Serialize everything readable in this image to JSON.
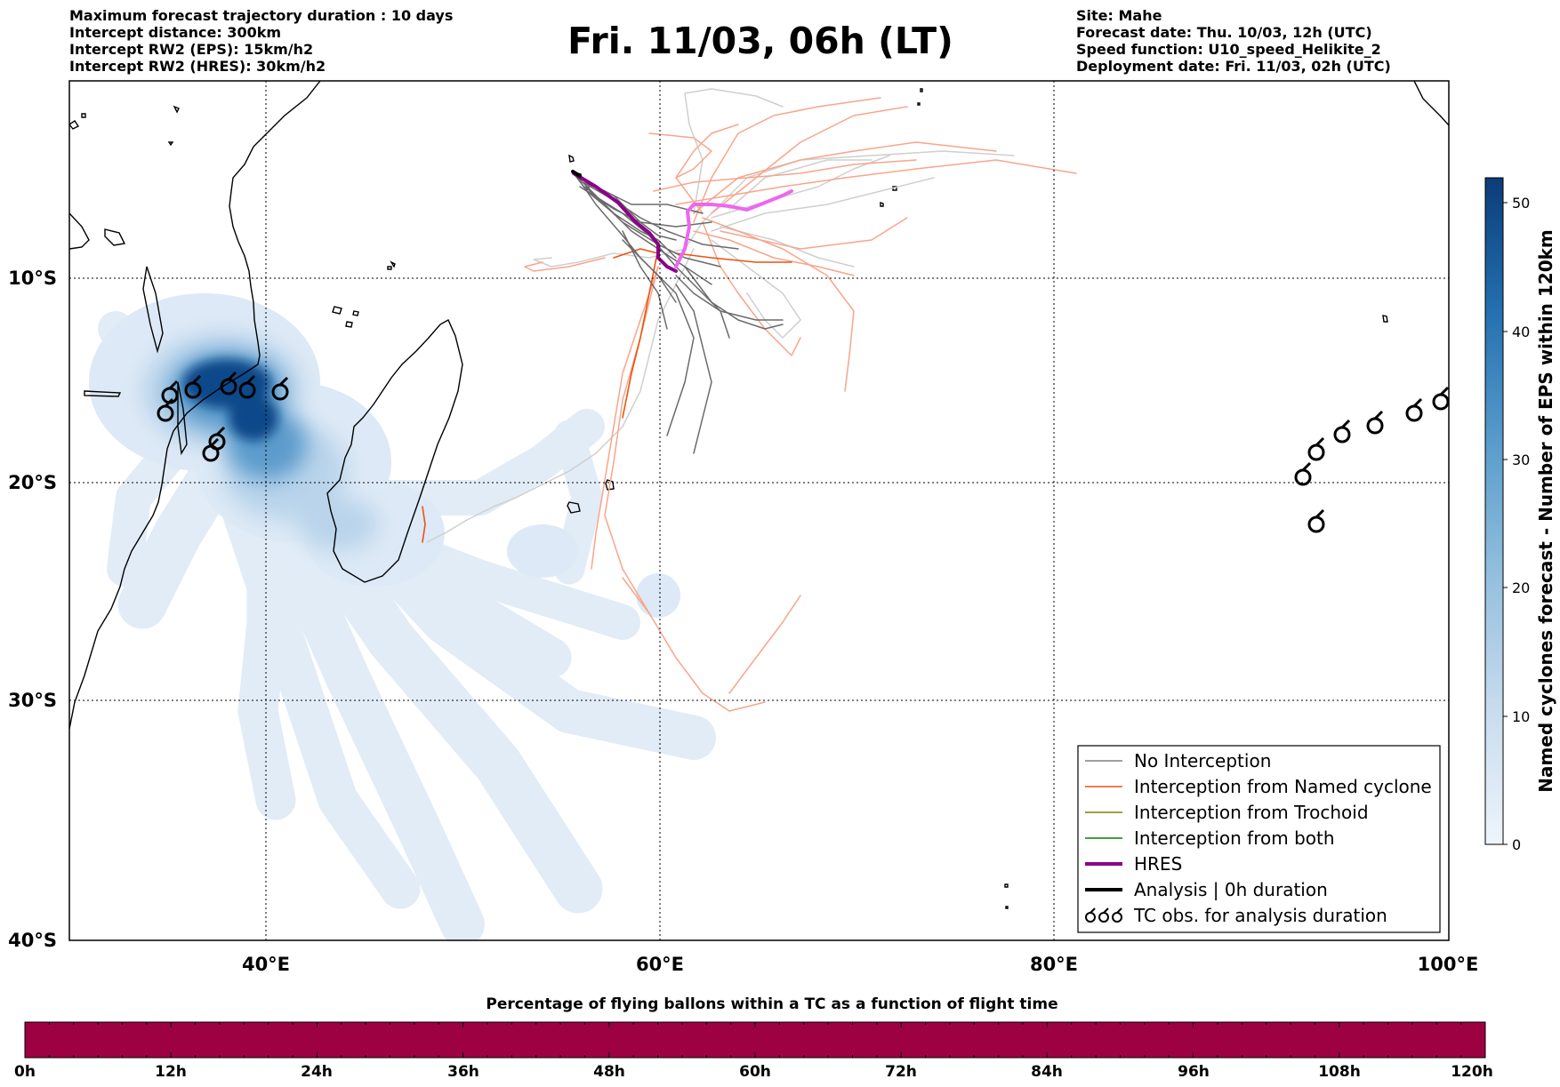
{
  "header": {
    "left": [
      "Maximum forecast trajectory duration : 10 days",
      "Intercept distance: 300km",
      "Intercept RW2 (EPS):  15km/h2",
      "Intercept RW2 (HRES): 30km/h2"
    ],
    "title": "Fri. 11/03, 06h (LT)",
    "right": [
      "Site: Mahe",
      "Forecast date: Thu. 10/03, 12h (UTC)",
      "Speed function: U10_speed_Helikite_2",
      "Deployment date: Fri. 11/03, 02h (UTC)"
    ]
  },
  "map": {
    "lon_labels": [
      "40°E",
      "60°E",
      "80°E",
      "100°E"
    ],
    "lat_labels": [
      "10°S",
      "20°S",
      "30°S",
      "40°S"
    ],
    "colors": {
      "no_interception": "#808080",
      "no_interception_light": "#cfcfcf",
      "named_cyclone": "#e8540f",
      "named_cyclone_light": "#f8a58a",
      "trochoid": "#808000",
      "both": "#008000",
      "hres": "#8b008b",
      "hres_light": "#ee66ee",
      "analysis": "#000000",
      "density_low": "#dce9f6",
      "density_high": "#0b3c78"
    }
  },
  "legend": {
    "items": [
      {
        "label": "No Interception",
        "color": "#808080",
        "width": 1.5
      },
      {
        "label": "Interception from Named cyclone",
        "color": "#e8540f",
        "width": 1.5
      },
      {
        "label": "Interception from Trochoid",
        "color": "#808000",
        "width": 1.5
      },
      {
        "label": "Interception from both",
        "color": "#008000",
        "width": 1.5
      },
      {
        "label": "HRES",
        "color": "#8b008b",
        "width": 4
      },
      {
        "label": "Analysis | 0h duration",
        "color": "#000000",
        "width": 4
      },
      {
        "label": "TC obs. for analysis duration",
        "color": "#000000",
        "width": 0,
        "icon": "tc-symbol-icon"
      }
    ]
  },
  "colorbar": {
    "title": "Named cyclones forecast - Number of EPS within 120km",
    "ticks": [
      "0",
      "10",
      "20",
      "30",
      "40",
      "50"
    ],
    "max": 52
  },
  "flight_time_bar": {
    "title": "Percentage of flying ballons within a TC as a function of flight time",
    "ticks": [
      "0h",
      "12h",
      "24h",
      "36h",
      "48h",
      "60h",
      "72h",
      "84h",
      "96h",
      "108h",
      "120h"
    ],
    "fill_color": "#9e0142"
  }
}
